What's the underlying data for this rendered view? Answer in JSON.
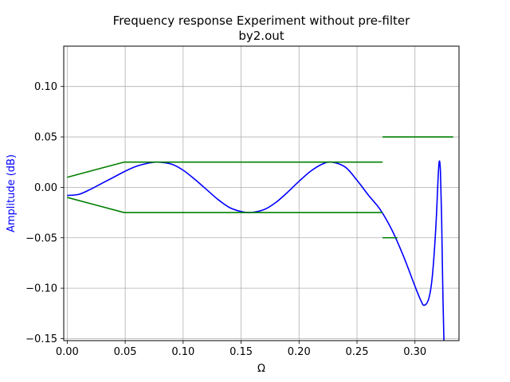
{
  "chart_data": {
    "type": "line",
    "title": "Frequency response Experiment without pre-filter",
    "subtitle": "by2.out",
    "xlabel": "Ω",
    "ylabel": "Amplitude (dB)",
    "ylabel_color": "#0000ff",
    "xlim": [
      -0.003,
      0.338
    ],
    "ylim": [
      -0.152,
      0.14
    ],
    "grid": true,
    "x_ticks": [
      0.0,
      0.05,
      0.1,
      0.15,
      0.2,
      0.25,
      0.3
    ],
    "x_tick_labels": [
      "0.00",
      "0.05",
      "0.10",
      "0.15",
      "0.20",
      "0.25",
      "0.30"
    ],
    "y_ticks": [
      -0.15,
      -0.1,
      -0.05,
      0.0,
      0.05,
      0.1
    ],
    "y_tick_labels": [
      "−0.15",
      "−0.10",
      "−0.05",
      "0.00",
      "0.05",
      "0.10"
    ],
    "series": [
      {
        "color": "#0000ff",
        "x": [
          0.0,
          0.01,
          0.02,
          0.03,
          0.04,
          0.05,
          0.06,
          0.07,
          0.078,
          0.09,
          0.1,
          0.11,
          0.12,
          0.13,
          0.14,
          0.15,
          0.158,
          0.17,
          0.18,
          0.19,
          0.2,
          0.21,
          0.22,
          0.228,
          0.24,
          0.25,
          0.26,
          0.27,
          0.28,
          0.29,
          0.3,
          0.305,
          0.308,
          0.312,
          0.315,
          0.318,
          0.32,
          0.321,
          0.322,
          0.323,
          0.324,
          0.325
        ],
        "y": [
          -0.008,
          -0.007,
          -0.002,
          0.004,
          0.01,
          0.016,
          0.021,
          0.024,
          0.025,
          0.023,
          0.017,
          0.008,
          -0.002,
          -0.012,
          -0.02,
          -0.024,
          -0.025,
          -0.022,
          -0.015,
          -0.005,
          0.006,
          0.016,
          0.023,
          0.025,
          0.02,
          0.007,
          -0.008,
          -0.022,
          -0.042,
          -0.068,
          -0.098,
          -0.112,
          -0.117,
          -0.11,
          -0.088,
          -0.04,
          0.01,
          0.026,
          0.015,
          -0.03,
          -0.1,
          -0.152
        ]
      },
      {
        "color": "#008000",
        "x": [
          0.0,
          0.049,
          0.272
        ],
        "y": [
          0.01,
          0.025,
          0.025
        ]
      },
      {
        "color": "#008000",
        "x": [
          0.0,
          0.049,
          0.272
        ],
        "y": [
          -0.01,
          -0.025,
          -0.025
        ]
      },
      {
        "color": "#008000",
        "x": [
          0.272,
          0.333
        ],
        "y": [
          0.05,
          0.05
        ]
      },
      {
        "color": "#008000",
        "x": [
          0.272,
          0.285
        ],
        "y": [
          -0.05,
          -0.05
        ]
      }
    ]
  }
}
